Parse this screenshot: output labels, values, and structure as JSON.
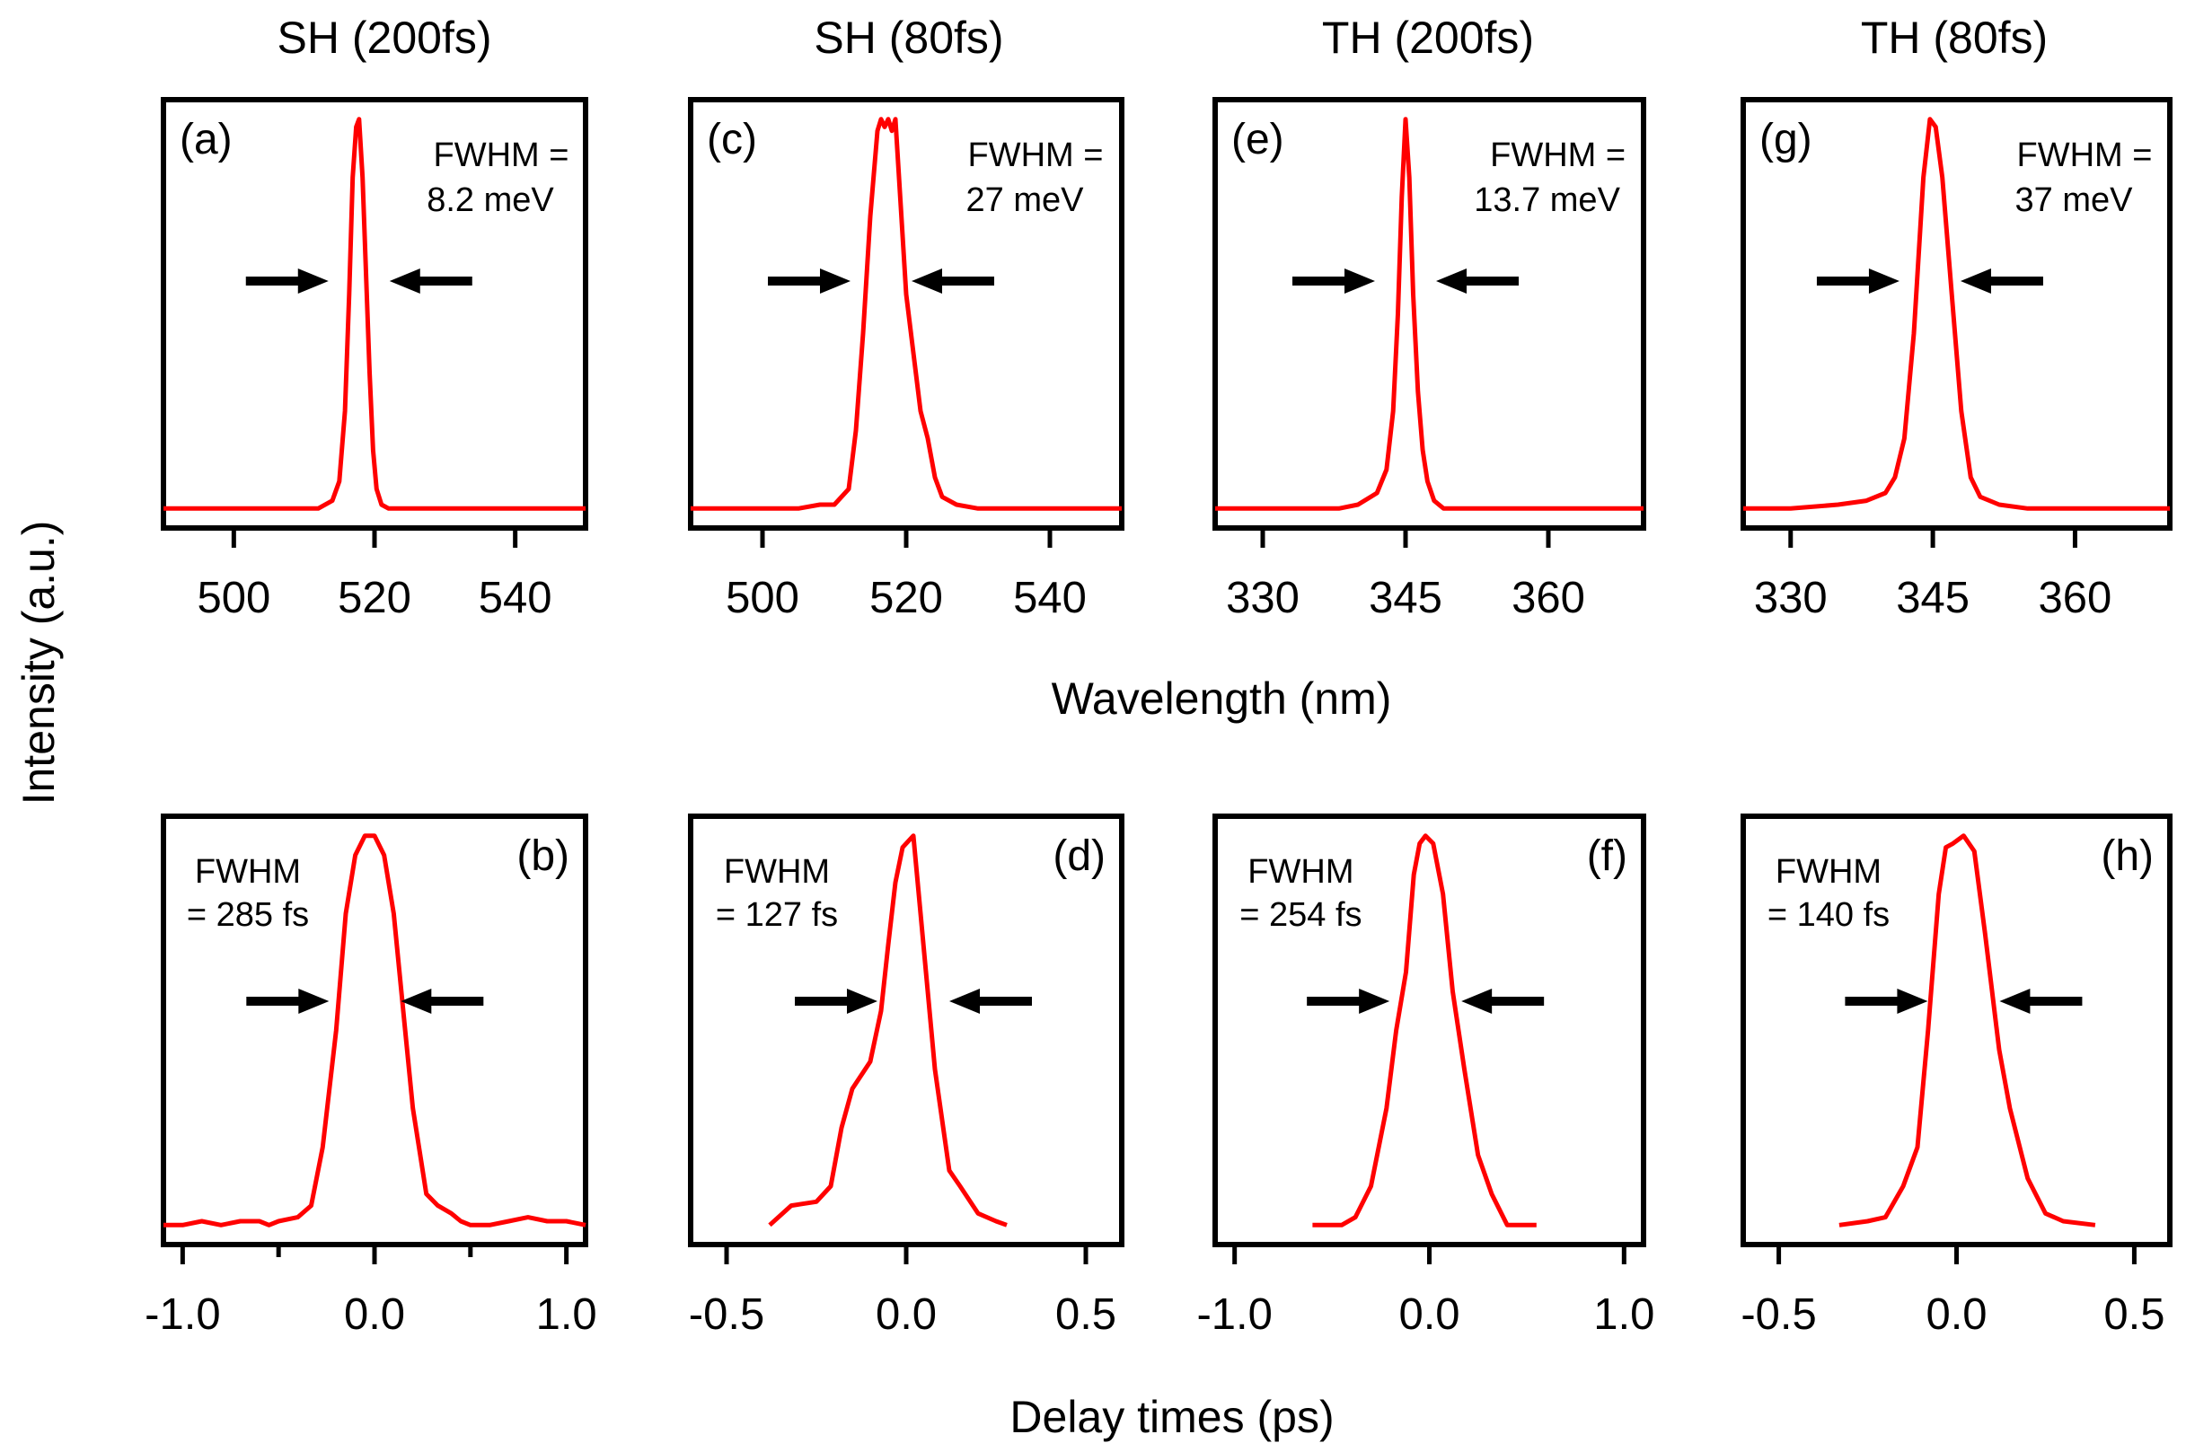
{
  "figure": {
    "y_axis_title": "Intensity (a.u.)",
    "x_title_top": "Wavelength (nm)",
    "x_title_bottom": "Delay times (ps)",
    "line_color": "#ff0000"
  },
  "chart_data": [
    {
      "id": "a",
      "type": "line",
      "column_title": "SH (200fs)",
      "panel_label": "(a)",
      "fwhm_lines": [
        "FWHM =",
        "8.2 meV"
      ],
      "xlabel": "Wavelength (nm)",
      "ylabel": "Intensity (a.u.)",
      "xlim": [
        490,
        550
      ],
      "ylim": [
        -0.05,
        1.05
      ],
      "xticks": [
        500,
        520,
        540
      ],
      "xtick_labels": [
        "500",
        "520",
        "540"
      ],
      "series": [
        {
          "name": "SH (200fs) spectrum",
          "x": [
            490,
            500,
            510,
            512,
            514,
            515,
            515.8,
            516.4,
            516.9,
            517.4,
            517.8,
            518.3,
            518.8,
            519.3,
            519.8,
            520.3,
            521,
            522,
            525,
            530,
            540,
            550
          ],
          "y": [
            0.0,
            0.0,
            0.0,
            0.0,
            0.02,
            0.07,
            0.25,
            0.55,
            0.85,
            0.98,
            1.0,
            0.85,
            0.6,
            0.35,
            0.15,
            0.05,
            0.01,
            0.0,
            0.0,
            0.0,
            0.0,
            0.0
          ]
        }
      ]
    },
    {
      "id": "c",
      "type": "line",
      "column_title": "SH (80fs)",
      "panel_label": "(c)",
      "fwhm_lines": [
        "FWHM =",
        "27 meV"
      ],
      "xlabel": "Wavelength (nm)",
      "ylabel": "Intensity (a.u.)",
      "xlim": [
        490,
        550
      ],
      "ylim": [
        -0.05,
        1.05
      ],
      "xticks": [
        500,
        520,
        540
      ],
      "xtick_labels": [
        "500",
        "520",
        "540"
      ],
      "series": [
        {
          "name": "SH (80fs) spectrum",
          "x": [
            490,
            500,
            505,
            508,
            510,
            512,
            513,
            514,
            515,
            516,
            516.5,
            517,
            517.5,
            518,
            518.5,
            519,
            520,
            521,
            522,
            523,
            524,
            525,
            527,
            530,
            540,
            550
          ],
          "y": [
            0.0,
            0.0,
            0.0,
            0.01,
            0.01,
            0.05,
            0.2,
            0.45,
            0.75,
            0.97,
            1.0,
            0.98,
            1.0,
            0.97,
            1.0,
            0.85,
            0.55,
            0.4,
            0.25,
            0.18,
            0.08,
            0.03,
            0.01,
            0.0,
            0.0,
            0.0
          ]
        }
      ]
    },
    {
      "id": "e",
      "type": "line",
      "column_title": "TH (200fs)",
      "panel_label": "(e)",
      "fwhm_lines": [
        "FWHM =",
        "13.7 meV"
      ],
      "xlabel": "Wavelength (nm)",
      "ylabel": "Intensity (a.u.)",
      "xlim": [
        325,
        370
      ],
      "ylim": [
        -0.05,
        1.05
      ],
      "xticks": [
        330,
        345,
        360
      ],
      "xtick_labels": [
        "330",
        "345",
        "360"
      ],
      "series": [
        {
          "name": "TH (200fs) spectrum",
          "x": [
            325,
            330,
            335,
            338,
            340,
            342,
            343,
            343.7,
            344.2,
            344.6,
            345,
            345.4,
            345.8,
            346.3,
            346.8,
            347.3,
            348,
            349,
            352,
            360,
            370
          ],
          "y": [
            0.0,
            0.0,
            0.0,
            0.0,
            0.01,
            0.04,
            0.1,
            0.25,
            0.5,
            0.8,
            1.0,
            0.85,
            0.55,
            0.3,
            0.15,
            0.07,
            0.02,
            0.0,
            0.0,
            0.0,
            0.0
          ]
        }
      ]
    },
    {
      "id": "g",
      "type": "line",
      "column_title": "TH (80fs)",
      "panel_label": "(g)",
      "fwhm_lines": [
        "FWHM =",
        "37 meV"
      ],
      "xlabel": "Wavelength (nm)",
      "ylabel": "Intensity (a.u.)",
      "xlim": [
        325,
        370
      ],
      "ylim": [
        -0.05,
        1.05
      ],
      "xticks": [
        330,
        345,
        360
      ],
      "xtick_labels": [
        "330",
        "345",
        "360"
      ],
      "series": [
        {
          "name": "TH (80fs) spectrum",
          "x": [
            325,
            330,
            335,
            338,
            340,
            341,
            342,
            343,
            344,
            344.7,
            345.3,
            346,
            347,
            348,
            349,
            350,
            352,
            355,
            360,
            370
          ],
          "y": [
            0.0,
            0.0,
            0.01,
            0.02,
            0.04,
            0.08,
            0.18,
            0.45,
            0.85,
            1.0,
            0.98,
            0.85,
            0.55,
            0.25,
            0.08,
            0.03,
            0.01,
            0.0,
            0.0,
            0.0
          ]
        }
      ]
    },
    {
      "id": "b",
      "type": "line",
      "panel_label": "(b)",
      "fwhm_lines": [
        "FWHM",
        "= 285 fs"
      ],
      "xlabel": "Delay times (ps)",
      "ylabel": "Intensity (a.u.)",
      "xlim": [
        -1.1,
        1.1
      ],
      "ylim": [
        -0.05,
        1.05
      ],
      "xticks": [
        -1.0,
        0.0,
        1.0
      ],
      "xtick_labels": [
        "-1.0",
        "0.0",
        "1.0"
      ],
      "minor_xticks": [
        -0.5,
        0.5
      ],
      "series": [
        {
          "name": "SH (200fs) autocorrelation",
          "x": [
            -1.1,
            -1.0,
            -0.9,
            -0.8,
            -0.7,
            -0.6,
            -0.55,
            -0.5,
            -0.4,
            -0.33,
            -0.27,
            -0.2,
            -0.15,
            -0.1,
            -0.05,
            0.0,
            0.05,
            0.1,
            0.15,
            0.2,
            0.27,
            0.33,
            0.4,
            0.45,
            0.5,
            0.6,
            0.7,
            0.8,
            0.9,
            1.0,
            1.1
          ],
          "y": [
            0.0,
            0.0,
            0.01,
            0.0,
            0.01,
            0.01,
            0.0,
            0.01,
            0.02,
            0.05,
            0.2,
            0.5,
            0.8,
            0.95,
            1.0,
            1.0,
            0.95,
            0.8,
            0.55,
            0.3,
            0.08,
            0.05,
            0.03,
            0.01,
            0.0,
            0.0,
            0.01,
            0.02,
            0.01,
            0.01,
            0.0
          ]
        }
      ]
    },
    {
      "id": "d",
      "type": "line",
      "panel_label": "(d)",
      "fwhm_lines": [
        "FWHM",
        "= 127 fs"
      ],
      "xlabel": "Delay times (ps)",
      "ylabel": "Intensity (a.u.)",
      "xlim": [
        -0.6,
        0.6
      ],
      "ylim": [
        -0.05,
        1.05
      ],
      "xticks": [
        -0.5,
        0.0,
        0.5
      ],
      "xtick_labels": [
        "-0.5",
        "0.0",
        "0.5"
      ],
      "series": [
        {
          "name": "SH (80fs) autocorrelation",
          "x": [
            -0.38,
            -0.32,
            -0.25,
            -0.21,
            -0.18,
            -0.15,
            -0.1,
            -0.07,
            -0.05,
            -0.03,
            -0.01,
            0.02,
            0.05,
            0.08,
            0.12,
            0.15,
            0.2,
            0.25,
            0.28
          ],
          "y": [
            0.0,
            0.05,
            0.06,
            0.1,
            0.25,
            0.35,
            0.42,
            0.55,
            0.72,
            0.88,
            0.97,
            1.0,
            0.7,
            0.4,
            0.14,
            0.1,
            0.03,
            0.01,
            0.0
          ]
        }
      ]
    },
    {
      "id": "f",
      "type": "line",
      "panel_label": "(f)",
      "fwhm_lines": [
        "FWHM",
        "= 254 fs"
      ],
      "xlabel": "Delay times (ps)",
      "ylabel": "Intensity (a.u.)",
      "xlim": [
        -1.1,
        1.1
      ],
      "ylim": [
        -0.05,
        1.05
      ],
      "xticks": [
        -1.0,
        0.0,
        1.0
      ],
      "xtick_labels": [
        "-1.0",
        "0.0",
        "1.0"
      ],
      "series": [
        {
          "name": "TH (200fs) autocorrelation",
          "x": [
            -0.6,
            -0.45,
            -0.38,
            -0.3,
            -0.22,
            -0.17,
            -0.12,
            -0.08,
            -0.05,
            -0.02,
            0.02,
            0.07,
            0.12,
            0.18,
            0.25,
            0.32,
            0.4,
            0.55
          ],
          "y": [
            0.0,
            0.0,
            0.02,
            0.1,
            0.3,
            0.5,
            0.65,
            0.9,
            0.98,
            1.0,
            0.98,
            0.85,
            0.6,
            0.4,
            0.18,
            0.08,
            0.0,
            0.0
          ]
        }
      ]
    },
    {
      "id": "h",
      "type": "line",
      "panel_label": "(h)",
      "fwhm_lines": [
        "FWHM",
        "= 140 fs"
      ],
      "xlabel": "Delay times (ps)",
      "ylabel": "Intensity (a.u.)",
      "xlim": [
        -0.6,
        0.6
      ],
      "ylim": [
        -0.05,
        1.05
      ],
      "xticks": [
        -0.5,
        0.0,
        0.5
      ],
      "xtick_labels": [
        "-0.5",
        "0.0",
        "0.5"
      ],
      "series": [
        {
          "name": "TH (80fs) autocorrelation",
          "x": [
            -0.33,
            -0.25,
            -0.2,
            -0.15,
            -0.11,
            -0.08,
            -0.05,
            -0.03,
            -0.01,
            0.02,
            0.05,
            0.08,
            0.12,
            0.15,
            0.2,
            0.25,
            0.3,
            0.39
          ],
          "y": [
            0.0,
            0.01,
            0.02,
            0.1,
            0.2,
            0.5,
            0.85,
            0.97,
            0.98,
            1.0,
            0.96,
            0.75,
            0.45,
            0.3,
            0.12,
            0.03,
            0.01,
            0.0
          ]
        }
      ]
    }
  ]
}
